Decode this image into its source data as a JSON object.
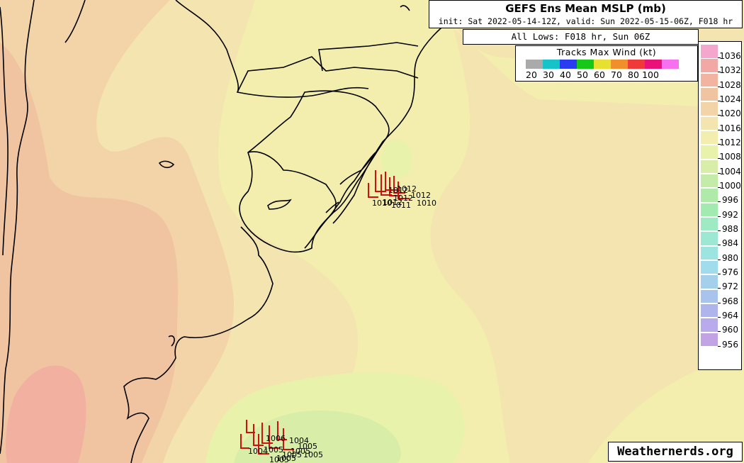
{
  "header": {
    "title": "GEFS Ens Mean MSLP (mb)",
    "subtitle": "init: Sat 2022-05-14-12Z, valid: Sun 2022-05-15-06Z, F018 hr"
  },
  "lows_label": "All Lows: F018 hr, Sun 06Z",
  "tracks_legend": {
    "title": "Tracks Max Wind (kt)",
    "swatch_colors": [
      "#aaaaaa",
      "#16c3c9",
      "#2a3cf0",
      "#18c818",
      "#e8e030",
      "#f0902a",
      "#f03a3a",
      "#e8127a",
      "#f870f0"
    ],
    "labels": [
      "20",
      "30",
      "40",
      "50",
      "60",
      "70",
      "80",
      "100"
    ]
  },
  "pressure_legend": {
    "levels": [
      "1036",
      "1032",
      "1028",
      "1024",
      "1020",
      "1016",
      "1012",
      "1008",
      "1004",
      "1000",
      "996",
      "992",
      "988",
      "984",
      "980",
      "976",
      "972",
      "968",
      "964",
      "960",
      "956"
    ],
    "colors": [
      "#f4a6cc",
      "#f2a8a4",
      "#f2b4a0",
      "#f0c4a0",
      "#f2d4a8",
      "#f3e4b0",
      "#f3eeae",
      "#e8f2aa",
      "#d8eea8",
      "#c4eca8",
      "#b0eaa8",
      "#a2eab0",
      "#9eeac2",
      "#9ce8d2",
      "#9ce4e0",
      "#a0dcec",
      "#a4d0ec",
      "#a8c4ec",
      "#b0b4ec",
      "#b8aaec",
      "#c2a4e6"
    ]
  },
  "map": {
    "land_border_color": "#000000",
    "track_color": "#cc1111",
    "cluster_north_labels": [
      "1012",
      "1012",
      "1012",
      "1012",
      "1010",
      "1010",
      "1011",
      "1012"
    ],
    "cluster_south_labels": [
      "1004",
      "1005",
      "1005",
      "1005",
      "1005",
      "1006",
      "1004",
      "1005",
      "1005",
      "1005"
    ]
  },
  "watermark": "Weathernerds.org"
}
